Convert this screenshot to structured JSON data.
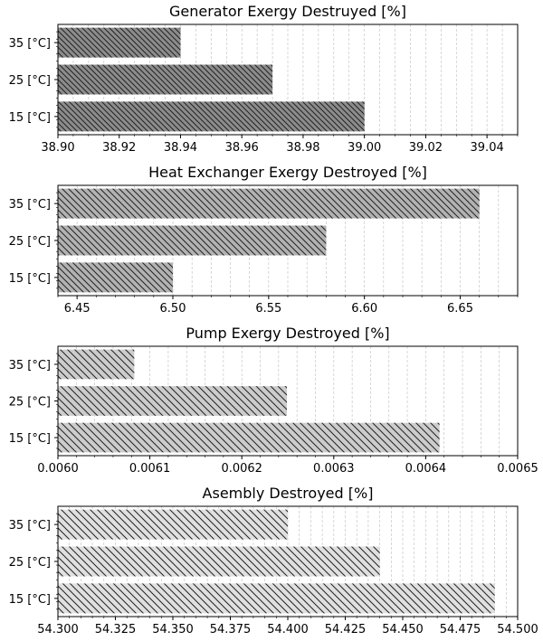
{
  "chart_data": [
    {
      "type": "bar",
      "orientation": "horizontal",
      "title": "Generator Exergy Destruyed [%]",
      "categories": [
        "15 [°C]",
        "25 [°C]",
        "35 [°C]"
      ],
      "values": [
        39.0,
        38.97,
        38.94
      ],
      "xlim": [
        38.9,
        39.05
      ],
      "xticks": [
        38.9,
        38.92,
        38.94,
        38.96,
        38.98,
        39.0,
        39.02,
        39.04
      ],
      "xtick_labels": [
        "38.90",
        "38.92",
        "38.94",
        "38.96",
        "38.98",
        "39.00",
        "39.02",
        "39.04"
      ],
      "minor_step": 0.005,
      "bar_color": "#8c8c8c",
      "hatch": "dense",
      "grid": "x-major-and-minor-dashed"
    },
    {
      "type": "bar",
      "orientation": "horizontal",
      "title": "Heat Exchanger Exergy Destroyed [%]",
      "categories": [
        "15 [°C]",
        "25 [°C]",
        "35 [°C]"
      ],
      "values": [
        6.5,
        6.58,
        6.66
      ],
      "xlim": [
        6.44,
        6.68
      ],
      "xticks": [
        6.45,
        6.5,
        6.55,
        6.6,
        6.65
      ],
      "xtick_labels": [
        "6.45",
        "6.50",
        "6.55",
        "6.60",
        "6.65"
      ],
      "minor_step": 0.01,
      "bar_color": "#b2b2b2",
      "hatch": "medium",
      "grid": "x-major-and-minor-dashed"
    },
    {
      "type": "bar",
      "orientation": "horizontal",
      "title": "Pump Exergy Destroyed [%]",
      "categories": [
        "15 [°C]",
        "25 [°C]",
        "35 [°C]"
      ],
      "values": [
        0.006415,
        0.006249,
        0.006083
      ],
      "xlim": [
        0.006,
        0.0065
      ],
      "xticks": [
        0.006,
        0.0061,
        0.0062,
        0.0063,
        0.0064,
        0.0065
      ],
      "xtick_labels": [
        "0.0060",
        "0.0061",
        "0.0062",
        "0.0063",
        "0.0064",
        "0.0065"
      ],
      "minor_step": 2e-05,
      "bar_color": "#cccccc",
      "hatch": "sparse",
      "grid": "x-major-and-minor-dashed"
    },
    {
      "type": "bar",
      "orientation": "horizontal",
      "title": "Asembly Destroyed [%]",
      "categories": [
        "15 [°C]",
        "25 [°C]",
        "35 [°C]"
      ],
      "values": [
        54.49,
        54.44,
        54.4
      ],
      "xlim": [
        54.3,
        54.5
      ],
      "xticks": [
        54.3,
        54.325,
        54.35,
        54.375,
        54.4,
        54.425,
        54.45,
        54.475,
        54.5
      ],
      "xtick_labels": [
        "54.300",
        "54.325",
        "54.350",
        "54.375",
        "54.400",
        "54.425",
        "54.450",
        "54.475",
        "54.500"
      ],
      "minor_step": 0.005,
      "bar_color": "#e0e0e0",
      "hatch": "sparse",
      "grid": "x-major-and-minor-dashed"
    }
  ]
}
